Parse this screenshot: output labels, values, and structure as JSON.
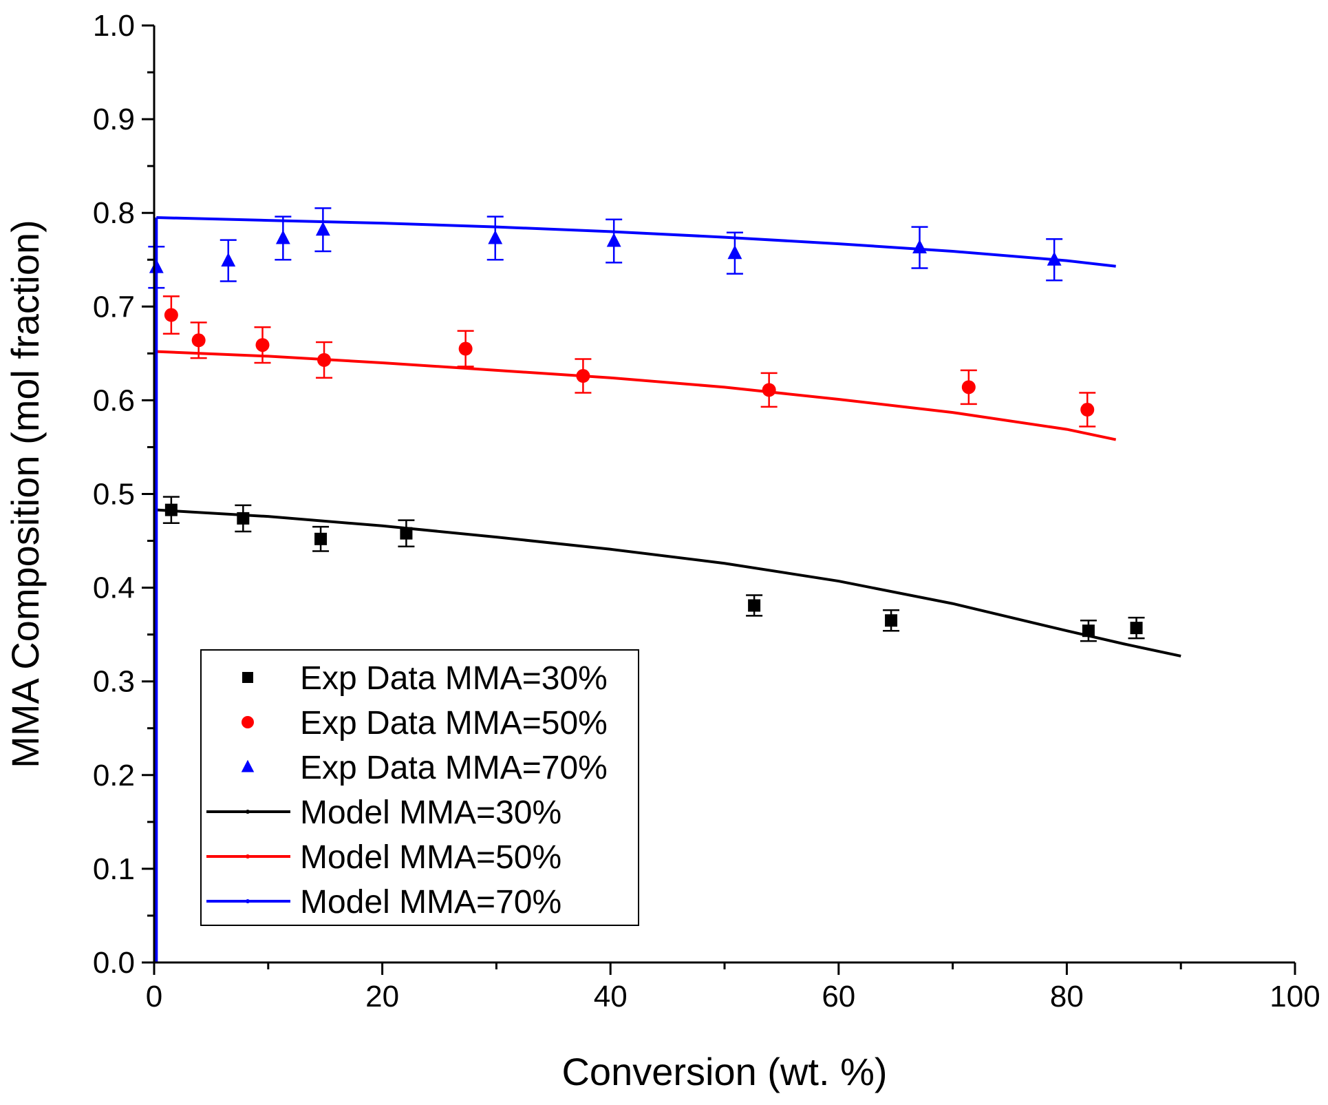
{
  "chart_data": {
    "type": "scatter",
    "title": "",
    "xlabel": "Conversion (wt. %)",
    "ylabel": "MMA Composition (mol fraction)",
    "xlim": [
      0,
      100
    ],
    "ylim": [
      0.0,
      1.0
    ],
    "x_ticks": [
      0,
      20,
      40,
      60,
      80,
      100
    ],
    "x_tick_labels": [
      "0",
      "20",
      "40",
      "60",
      "80",
      "100"
    ],
    "y_ticks": [
      0.0,
      0.1,
      0.2,
      0.3,
      0.4,
      0.5,
      0.6,
      0.7,
      0.8,
      0.9,
      1.0
    ],
    "y_tick_labels": [
      "0.0",
      "0.1",
      "0.2",
      "0.3",
      "0.4",
      "0.5",
      "0.6",
      "0.7",
      "0.8",
      "0.9",
      "1.0"
    ],
    "grid": false,
    "legend_position": "bottom-left",
    "series": [
      {
        "name": "Exp Data MMA=30%",
        "kind": "scatter",
        "marker": "square",
        "color": "#000000",
        "x": [
          1.5,
          7.8,
          14.6,
          22.1,
          52.6,
          64.6,
          81.9,
          86.1
        ],
        "y": [
          0.483,
          0.474,
          0.452,
          0.458,
          0.381,
          0.365,
          0.354,
          0.357
        ],
        "err": [
          0.014,
          0.014,
          0.013,
          0.014,
          0.011,
          0.011,
          0.011,
          0.011
        ]
      },
      {
        "name": "Exp Data MMA=50%",
        "kind": "scatter",
        "marker": "circle",
        "color": "#ff0000",
        "x": [
          1.5,
          3.9,
          9.5,
          14.9,
          27.3,
          37.6,
          53.9,
          71.4,
          81.8
        ],
        "y": [
          0.691,
          0.664,
          0.659,
          0.643,
          0.655,
          0.626,
          0.611,
          0.614,
          0.59
        ],
        "err": [
          0.02,
          0.019,
          0.019,
          0.019,
          0.019,
          0.018,
          0.018,
          0.018,
          0.018
        ]
      },
      {
        "name": "Exp Data MMA=70%",
        "kind": "scatter",
        "marker": "triangle",
        "color": "#0000ff",
        "x": [
          0.2,
          6.5,
          11.3,
          14.8,
          29.9,
          40.3,
          50.9,
          67.1,
          78.9
        ],
        "y": [
          0.742,
          0.749,
          0.773,
          0.782,
          0.773,
          0.77,
          0.757,
          0.763,
          0.75
        ],
        "err": [
          0.022,
          0.022,
          0.023,
          0.023,
          0.023,
          0.023,
          0.022,
          0.022,
          0.022
        ]
      },
      {
        "name": "Model MMA=30%",
        "kind": "line",
        "color": "#000000",
        "x": [
          0.2,
          10,
          20,
          30,
          40,
          50,
          60,
          70,
          80,
          85,
          90
        ],
        "y": [
          0.483,
          0.476,
          0.466,
          0.454,
          0.441,
          0.426,
          0.407,
          0.383,
          0.354,
          0.34,
          0.327
        ]
      },
      {
        "name": "Model MMA=50%",
        "kind": "line",
        "color": "#ff0000",
        "x": [
          0.2,
          10,
          20,
          30,
          40,
          50,
          60,
          70,
          80,
          84.3
        ],
        "y": [
          0.652,
          0.647,
          0.64,
          0.632,
          0.624,
          0.614,
          0.601,
          0.587,
          0.569,
          0.558
        ]
      },
      {
        "name": "Model MMA=70%",
        "kind": "line",
        "color": "#0000ff",
        "x": [
          0.2,
          10,
          20,
          30,
          40,
          50,
          60,
          70,
          80,
          84.3
        ],
        "y": [
          0.795,
          0.792,
          0.789,
          0.785,
          0.78,
          0.774,
          0.767,
          0.759,
          0.749,
          0.743
        ]
      }
    ]
  }
}
